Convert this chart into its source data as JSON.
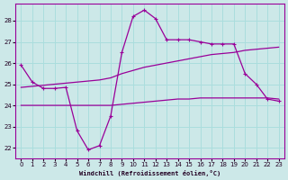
{
  "bg_color": "#cce8e8",
  "grid_color": "#aadddd",
  "line_color": "#990099",
  "xlim": [
    -0.5,
    23.5
  ],
  "ylim": [
    21.5,
    28.8
  ],
  "yticks": [
    22,
    23,
    24,
    25,
    26,
    27,
    28
  ],
  "xticks": [
    0,
    1,
    2,
    3,
    4,
    5,
    6,
    7,
    8,
    9,
    10,
    11,
    12,
    13,
    14,
    15,
    16,
    17,
    18,
    19,
    20,
    21,
    22,
    23
  ],
  "xlabel": "Windchill (Refroidissement éolien,°C)",
  "series": [
    {
      "x": [
        0,
        1,
        2,
        3,
        4,
        5,
        6,
        7,
        8,
        9,
        10,
        11,
        12,
        13,
        14,
        15,
        16,
        17,
        18,
        19,
        20,
        21,
        22,
        23
      ],
      "y": [
        25.9,
        25.1,
        24.8,
        24.8,
        24.85,
        22.8,
        21.9,
        22.1,
        23.5,
        26.5,
        28.2,
        28.5,
        28.1,
        27.1,
        27.1,
        27.1,
        27.0,
        26.9,
        26.9,
        26.9,
        25.5,
        25.0,
        24.3,
        24.2
      ],
      "marker": "+",
      "lw": 0.9
    },
    {
      "x": [
        0,
        1,
        2,
        3,
        4,
        5,
        6,
        7,
        8,
        9,
        10,
        11,
        12,
        13,
        14,
        15,
        16,
        17,
        18,
        19,
        20,
        21,
        22,
        23
      ],
      "y": [
        24.85,
        24.9,
        24.95,
        25.0,
        25.05,
        25.1,
        25.15,
        25.2,
        25.3,
        25.5,
        25.65,
        25.8,
        25.9,
        26.0,
        26.1,
        26.2,
        26.3,
        26.4,
        26.45,
        26.5,
        26.6,
        26.65,
        26.7,
        26.75
      ],
      "marker": null,
      "lw": 0.9
    },
    {
      "x": [
        0,
        1,
        2,
        3,
        4,
        5,
        6,
        7,
        8,
        9,
        10,
        11,
        12,
        13,
        14,
        15,
        16,
        17,
        18,
        19,
        20,
        21,
        22,
        23
      ],
      "y": [
        24.0,
        24.0,
        24.0,
        24.0,
        24.0,
        24.0,
        24.0,
        24.0,
        24.0,
        24.05,
        24.1,
        24.15,
        24.2,
        24.25,
        24.3,
        24.3,
        24.35,
        24.35,
        24.35,
        24.35,
        24.35,
        24.35,
        24.35,
        24.3
      ],
      "marker": null,
      "lw": 0.9
    }
  ]
}
